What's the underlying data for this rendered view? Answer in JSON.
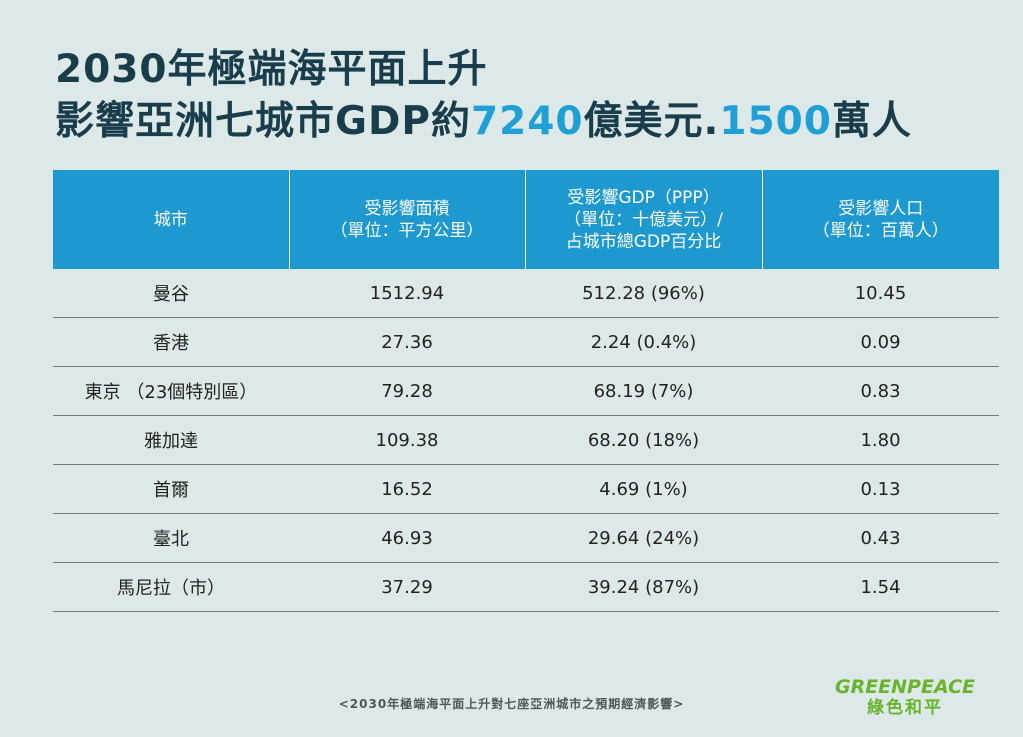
{
  "title": {
    "line1": "2030年極端海平面上升",
    "line2_prefix": "影響亞洲七城市GDP約",
    "line2_gdp": "7240",
    "line2_mid": "億美元.",
    "line2_people": "1500",
    "line2_suffix": "萬人"
  },
  "table": {
    "headers": [
      "城市",
      "受影響面積\n（單位：平方公里）",
      "受影響GDP（PPP）\n（單位：十億美元）/\n占城市總GDP百分比",
      "受影響人口\n（單位：百萬人）"
    ],
    "rows": [
      [
        "曼谷",
        "1512.94",
        "512.28 (96%)",
        "10.45"
      ],
      [
        "香港",
        "27.36",
        "2.24 (0.4%)",
        "0.09"
      ],
      [
        "東京 （23個特別區）",
        "79.28",
        "68.19 (7%)",
        "0.83"
      ],
      [
        "雅加達",
        "109.38",
        "68.20 (18%)",
        "1.80"
      ],
      [
        "首爾",
        "16.52",
        "4.69 (1%)",
        "0.13"
      ],
      [
        "臺北",
        "46.93",
        "29.64 (24%)",
        "0.43"
      ],
      [
        "馬尼拉（市）",
        "37.29",
        "39.24 (87%)",
        "1.54"
      ]
    ]
  },
  "footer": "<2030年極端海平面上升對七座亞洲城市之預期經濟影響>",
  "logo": {
    "en": "GREENPEACE",
    "zh": "綠色和平"
  },
  "colors": {
    "background": "#dde9e8",
    "title": "#1a3d4c",
    "title_highlight": "#1e9fd6",
    "header_bg": "#1e99cf",
    "logo": "#6ab42d"
  }
}
